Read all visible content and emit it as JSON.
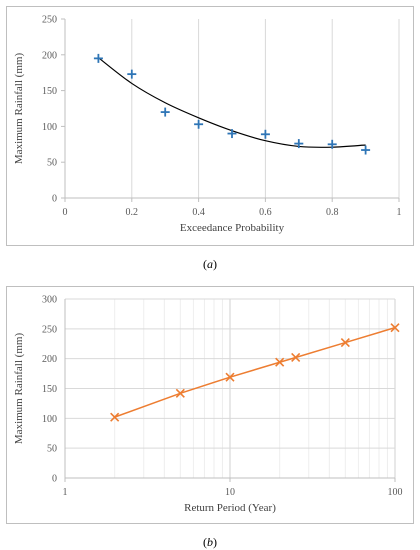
{
  "chart_data": [
    {
      "type": "scatter",
      "id": "a",
      "caption": "a",
      "xlabel": "Exceedance Probability",
      "ylabel": "Maximum Rainfall (mm)",
      "xlim": [
        0,
        1
      ],
      "ylim": [
        0,
        250
      ],
      "xticks": [
        "0",
        "0.2",
        "0.4",
        "0.6",
        "0.8",
        "1"
      ],
      "yticks": [
        "0",
        "50",
        "100",
        "150",
        "200",
        "250"
      ],
      "grid": "vertical",
      "x": [
        0.1,
        0.2,
        0.3,
        0.4,
        0.5,
        0.6,
        0.7,
        0.8,
        0.9
      ],
      "y": [
        195,
        173,
        120,
        103,
        90,
        89,
        76,
        75,
        67
      ],
      "marker": "plus",
      "marker_color": "#2e75b6",
      "trendline": {
        "type": "polynomial",
        "color": "#000000",
        "x": [
          0.1,
          0.2,
          0.3,
          0.4,
          0.5,
          0.6,
          0.7,
          0.8,
          0.9
        ],
        "y": [
          196,
          160,
          133,
          112,
          94,
          80,
          72,
          71,
          74
        ]
      }
    },
    {
      "type": "line",
      "id": "b",
      "caption": "b",
      "xlabel": "Return Period (Year)",
      "ylabel": "Maximum Rainfall (mm)",
      "xscale": "log",
      "xlim": [
        1,
        100
      ],
      "ylim": [
        0,
        300
      ],
      "xticks": [
        "1",
        "10",
        "100"
      ],
      "yticks": [
        "0",
        "50",
        "100",
        "150",
        "200",
        "250",
        "300"
      ],
      "grid": "both",
      "x": [
        2,
        5,
        10,
        20,
        25,
        50,
        100
      ],
      "y": [
        102,
        142,
        169,
        194,
        202,
        227,
        252
      ],
      "marker": "x",
      "color": "#ed7d31"
    }
  ]
}
